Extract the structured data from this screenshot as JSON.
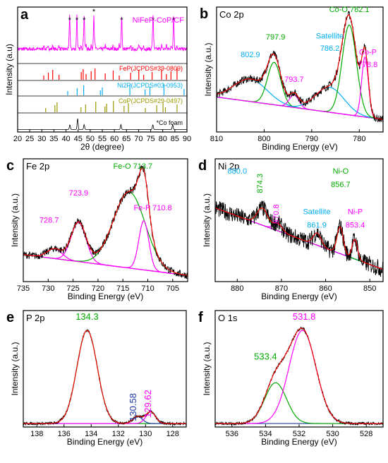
{
  "chart_data": [
    {
      "id": "a",
      "letter": "a",
      "type": "line",
      "xlabel": "2θ (degree)",
      "ylabel": "Intensity (a.u)",
      "xlim": [
        20,
        90
      ],
      "reverse": false,
      "xticks": [
        20,
        25,
        30,
        35,
        40,
        45,
        50,
        55,
        60,
        65,
        70,
        75,
        80,
        85,
        90
      ],
      "sample_label": "NiFeP-CoP/CF",
      "sample_color": "#ff00ff",
      "peaks_2theta": [
        41.5,
        44.5,
        47.5,
        51.5,
        63.0,
        76.0,
        84.5
      ],
      "references": [
        {
          "name": "FeP(JCPDS#39-0809)",
          "color": "#ff0000",
          "positions": [
            30.8,
            32.7,
            34.5,
            37.1,
            46.3,
            47.1,
            48.3,
            50.4,
            52.0,
            56.2,
            59.5,
            62.0,
            66.7,
            70.1,
            72.1,
            75.6,
            79.5,
            81.5,
            83.4,
            85.9
          ]
        },
        {
          "name": "Ni2P(JCPDS#03-0953)",
          "color": "#00aeef",
          "positions": [
            40.7,
            44.6,
            47.3,
            54.2,
            55.0,
            66.4,
            72.7,
            74.7,
            80.5,
            88.8
          ]
        },
        {
          "name": "CoP(JCPDS#29-0497)",
          "color": "#999900",
          "positions": [
            31.6,
            35.4,
            36.3,
            46.2,
            48.1,
            52.3,
            56.1,
            56.8,
            59.6,
            64.0,
            65.8,
            72.8,
            77.5,
            80.1,
            81.1,
            85.9
          ]
        },
        {
          "name": "*Co foam",
          "color": "#000000",
          "positions": [
            41.6,
            44.8,
            47.5,
            62.7,
            75.9,
            84.1
          ]
        }
      ]
    },
    {
      "id": "b",
      "letter": "b",
      "title": "Co 2p",
      "type": "line",
      "xlabel": "Binding Energy (eV)",
      "ylabel": "Intensity (a.u.)",
      "xlim": [
        810,
        775
      ],
      "reverse": true,
      "xticks": [
        810,
        800,
        790,
        780
      ],
      "background": {
        "color": "#ff00ff",
        "start": 0.28,
        "end": 0.1
      },
      "peaks": [
        {
          "label": "802.9",
          "center": 802.9,
          "width": 3.5,
          "height": 0.18,
          "color": "#00aeef"
        },
        {
          "label": "797.9",
          "center": 797.9,
          "width": 1.4,
          "height": 0.34,
          "color": "#00aa00"
        },
        {
          "label": "793.7",
          "center": 793.7,
          "width": 1.0,
          "height": 0.1,
          "color": "#ff00ff"
        },
        {
          "label": "786.2",
          "center": 786.2,
          "width": 3.0,
          "height": 0.2,
          "color": "#00aeef"
        },
        {
          "label": "782.1",
          "center": 782.1,
          "width": 1.5,
          "height": 0.72,
          "color": "#00aa00"
        },
        {
          "label": "778.8",
          "center": 778.8,
          "width": 0.7,
          "height": 0.48,
          "color": "#ff00ff"
        }
      ],
      "annotations": [
        {
          "text": "802.9",
          "x": 802.9,
          "y": 0.6,
          "color": "#00aeef"
        },
        {
          "text": "797.9",
          "x": 797.6,
          "y": 0.74,
          "color": "#00aa00"
        },
        {
          "text": "793.7",
          "x": 793.7,
          "y": 0.4,
          "color": "#ff00ff"
        },
        {
          "text": "Satellite",
          "x": 786.2,
          "y": 0.75,
          "color": "#00aeef"
        },
        {
          "text": "786.2",
          "x": 786.2,
          "y": 0.65,
          "color": "#00aeef"
        },
        {
          "text": "Co-O 782.1",
          "x": 782.1,
          "y": 0.96,
          "color": "#00aa00"
        },
        {
          "text": "Co-P",
          "x": 778.2,
          "y": 0.62,
          "color": "#ff00ff"
        },
        {
          "text": "778.8",
          "x": 778.2,
          "y": 0.52,
          "color": "#ff00ff"
        }
      ]
    },
    {
      "id": "c",
      "letter": "c",
      "title": "Fe 2p",
      "type": "line",
      "xlabel": "Binding Energy (eV)",
      "ylabel": "Intensity (a.u.)",
      "xlim": [
        735,
        702
      ],
      "reverse": true,
      "xticks": [
        735,
        730,
        725,
        720,
        715,
        710,
        705
      ],
      "background": {
        "color": "#00aa00",
        "start": 0.22,
        "end": 0.05
      },
      "peaks": [
        {
          "label": "728.7",
          "center": 728.7,
          "width": 1.5,
          "height": 0.08,
          "color": "#ff00ff"
        },
        {
          "label": "723.9",
          "center": 723.9,
          "width": 1.5,
          "height": 0.32,
          "color": "#ff00ff"
        },
        {
          "label": "713.7",
          "center": 713.7,
          "width": 3.2,
          "height": 0.62,
          "color": "#00aa00"
        },
        {
          "label": "710.8",
          "center": 710.8,
          "width": 1.0,
          "height": 0.4,
          "color": "#ff00ff"
        }
      ],
      "annotations": [
        {
          "text": "728.7",
          "x": 729.8,
          "y": 0.48,
          "color": "#ff00ff"
        },
        {
          "text": "723.9",
          "x": 723.9,
          "y": 0.7,
          "color": "#ff00ff"
        },
        {
          "text": "Fe-O 713.7",
          "x": 713.0,
          "y": 0.92,
          "color": "#00aa00"
        },
        {
          "text": "Fe-P 710.8",
          "x": 709.0,
          "y": 0.58,
          "color": "#ff00ff"
        }
      ]
    },
    {
      "id": "d",
      "letter": "d",
      "title": "Ni 2p",
      "type": "line",
      "xlabel": "Binding Energy (eV)",
      "ylabel": "Intensity (a.u.)",
      "xlim": [
        885,
        847
      ],
      "reverse": true,
      "xticks": [
        880,
        870,
        860,
        850
      ],
      "background": {
        "color": "#00aeef",
        "start": 0.6,
        "end": 0.1
      },
      "peaks": [
        {
          "label": "874.3",
          "center": 874.3,
          "width": 1.2,
          "height": 0.14,
          "color": "#00aa00"
        },
        {
          "label": "870.8",
          "center": 870.8,
          "width": 1.0,
          "height": 0.06,
          "color": "#ff00ff"
        },
        {
          "label": "861.9",
          "center": 861.9,
          "width": 0.9,
          "height": 0.1,
          "color": "#00aeef"
        },
        {
          "label": "856.7",
          "center": 856.7,
          "width": 0.7,
          "height": 0.22,
          "color": "#00aa00"
        },
        {
          "label": "853.4",
          "center": 853.4,
          "width": 0.6,
          "height": 0.16,
          "color": "#ff00ff"
        }
      ],
      "annotations": [
        {
          "text": "880.0",
          "x": 880.0,
          "y": 0.88,
          "color": "#00aeef"
        },
        {
          "text": "874.3",
          "x": 874.3,
          "y": 0.8,
          "color": "#00aa00",
          "rotate": true
        },
        {
          "text": "870.8",
          "x": 870.6,
          "y": 0.55,
          "color": "#ff00ff",
          "rotate": true
        },
        {
          "text": "Satellite",
          "x": 862.0,
          "y": 0.55,
          "color": "#00aeef"
        },
        {
          "text": "861.9",
          "x": 862.0,
          "y": 0.44,
          "color": "#00aeef"
        },
        {
          "text": "Ni-O",
          "x": 856.6,
          "y": 0.88,
          "color": "#00aa00"
        },
        {
          "text": "856.7",
          "x": 856.6,
          "y": 0.77,
          "color": "#00aa00"
        },
        {
          "text": "Ni-P",
          "x": 853.3,
          "y": 0.55,
          "color": "#ff00ff"
        },
        {
          "text": "853.4",
          "x": 853.3,
          "y": 0.44,
          "color": "#ff00ff"
        }
      ]
    },
    {
      "id": "e",
      "letter": "e",
      "title": "P 2p",
      "type": "line",
      "xlabel": "Binding Energy (eV)",
      "ylabel": "Intensity (a.u.)",
      "xlim": [
        139,
        127
      ],
      "reverse": true,
      "xticks": [
        138,
        136,
        134,
        132,
        130,
        128
      ],
      "background": {
        "color": "#1f3ca8",
        "start": 0.03,
        "end": 0.03
      },
      "peaks": [
        {
          "label": "134.3",
          "center": 134.3,
          "width": 0.75,
          "height": 0.8,
          "color": "#00aa00"
        },
        {
          "label": "130.58",
          "center": 130.58,
          "width": 0.35,
          "height": 0.06,
          "color": "#1f3ca8"
        },
        {
          "label": "129.62",
          "center": 129.62,
          "width": 0.35,
          "height": 0.1,
          "color": "#ff00ff"
        }
      ],
      "annotations": [
        {
          "text": "134.3",
          "x": 134.3,
          "y": 0.92,
          "color": "#00aa00"
        },
        {
          "text": "130.58",
          "x": 130.7,
          "y": 0.17,
          "color": "#1f3ca8",
          "rotate": true
        },
        {
          "text": "129.62",
          "x": 129.6,
          "y": 0.2,
          "color": "#ff00ff",
          "rotate": true
        }
      ]
    },
    {
      "id": "f",
      "letter": "f",
      "title": "O 1s",
      "type": "line",
      "xlabel": "Binding Energy (eV)",
      "ylabel": "Intensity (a.u.)",
      "xlim": [
        537,
        527
      ],
      "reverse": true,
      "xticks": [
        536,
        534,
        532,
        530,
        528
      ],
      "background": {
        "color": "#1f3ca8",
        "start": 0.03,
        "end": 0.03
      },
      "peaks": [
        {
          "label": "533.4",
          "center": 533.4,
          "width": 0.65,
          "height": 0.35,
          "color": "#00aa00"
        },
        {
          "label": "531.8",
          "center": 531.8,
          "width": 0.8,
          "height": 0.8,
          "color": "#ff00ff"
        }
      ],
      "annotations": [
        {
          "text": "531.8",
          "x": 531.7,
          "y": 0.92,
          "color": "#ff00ff"
        },
        {
          "text": "533.4",
          "x": 534.0,
          "y": 0.58,
          "color": "#00aa00"
        }
      ]
    }
  ]
}
